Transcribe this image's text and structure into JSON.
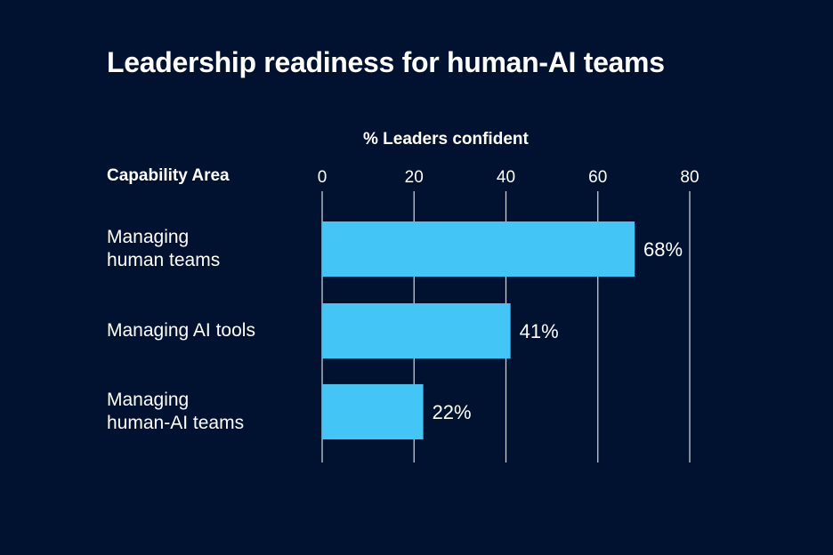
{
  "chart_data": {
    "type": "bar",
    "orientation": "horizontal",
    "title": "Leadership readiness for human-AI teams",
    "xlabel": "% Leaders confident",
    "category_header": "Capability Area",
    "categories": [
      "Managing\nhuman teams",
      "Managing AI tools",
      "Managing\nhuman-AI teams"
    ],
    "values": [
      68,
      41,
      22
    ],
    "data_labels": [
      "68%",
      "41%",
      "22%"
    ],
    "xlim": [
      0,
      80
    ],
    "xticks": [
      "0",
      "20",
      "40",
      "60",
      "80"
    ],
    "grid": true,
    "colors": {
      "bar": "#43c5f5",
      "background": "#011230",
      "grid": "#c8ccd4"
    }
  }
}
